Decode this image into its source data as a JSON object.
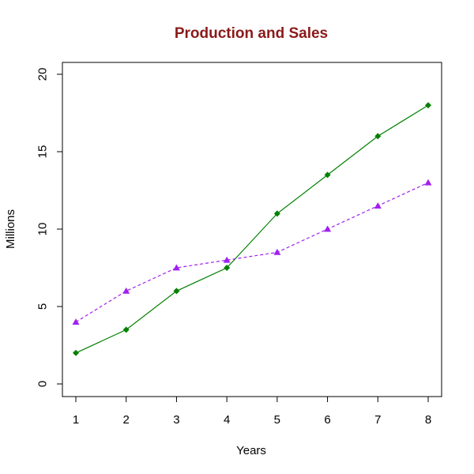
{
  "chart_data": {
    "type": "line",
    "title": "Production and Sales",
    "xlabel": "Years",
    "ylabel": "Millions",
    "x": [
      1,
      2,
      3,
      4,
      5,
      6,
      7,
      8
    ],
    "xlim": [
      1,
      8
    ],
    "ylim": [
      0,
      20
    ],
    "xticks": [
      1,
      2,
      3,
      4,
      5,
      6,
      7,
      8
    ],
    "yticks": [
      0,
      5,
      10,
      15,
      20
    ],
    "grid": false,
    "legend": "none",
    "series": [
      {
        "values": [
          2,
          3.5,
          6,
          7.5,
          11,
          13.5,
          16,
          18
        ],
        "color": "#008000",
        "line_style": "solid",
        "marker": "diamond"
      },
      {
        "values": [
          4,
          6,
          7.5,
          8,
          8.5,
          10,
          11.5,
          13
        ],
        "color": "#A020F0",
        "line_style": "dashed",
        "marker": "triangle"
      }
    ]
  },
  "colors": {
    "title": "#8B1A1A",
    "axis": "#000000",
    "background": "#ffffff"
  }
}
